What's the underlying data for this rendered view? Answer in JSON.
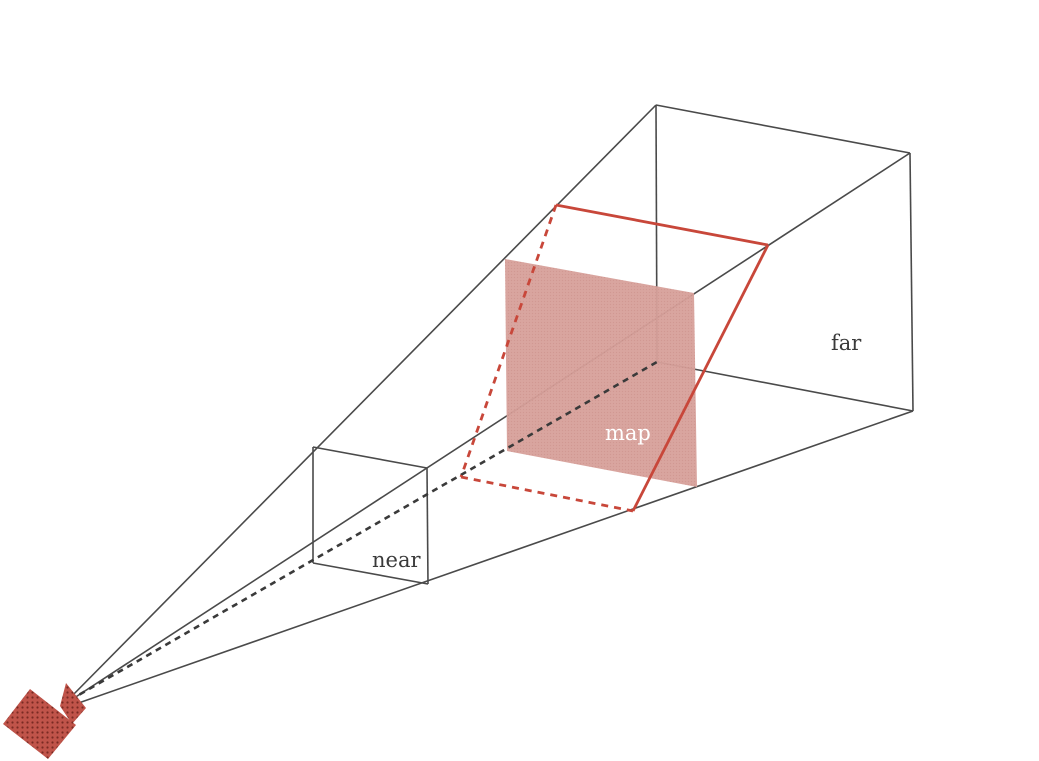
{
  "labels": {
    "near": "near",
    "far": "far",
    "map": "map"
  },
  "colors": {
    "frustum_lines": "#4a4a4a",
    "accent": "#c8473a",
    "map_fill": "#d9a29a",
    "camera": "#b5473a"
  },
  "icons": {
    "camera": "camera-icon"
  }
}
